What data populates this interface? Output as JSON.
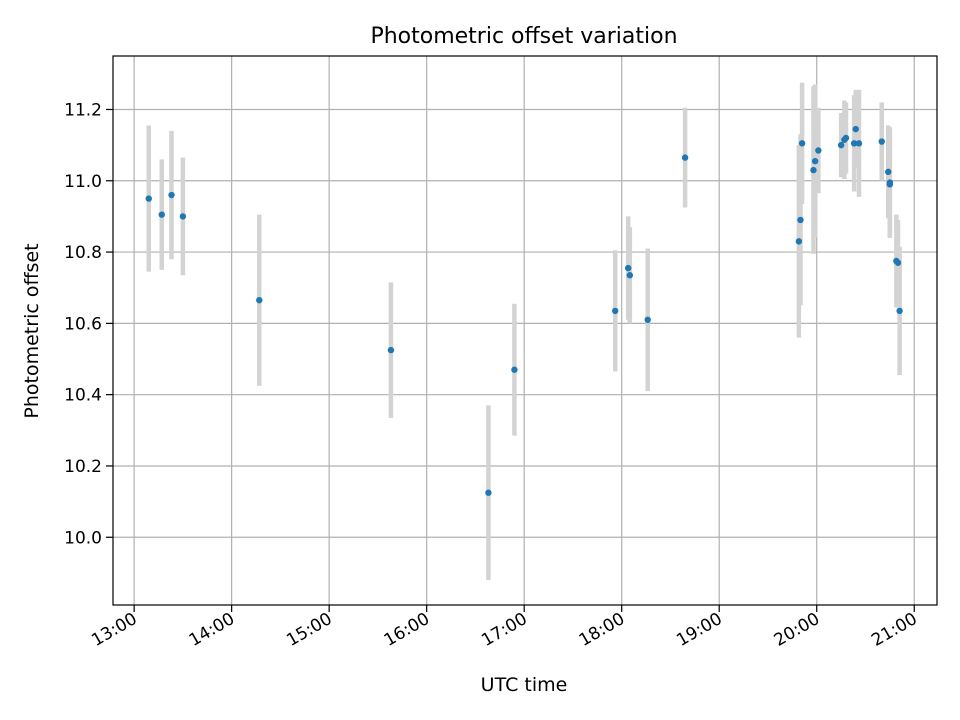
{
  "chart_data": {
    "type": "scatter",
    "title": "Photometric offset variation",
    "xlabel": "UTC time",
    "ylabel": "Photometric offset",
    "xlim": [
      "12:47",
      "21:14"
    ],
    "ylim": [
      9.81,
      11.35
    ],
    "x_ticks": [
      "13:00",
      "14:00",
      "15:00",
      "16:00",
      "17:00",
      "18:00",
      "19:00",
      "20:00",
      "21:00"
    ],
    "y_ticks": [
      10.0,
      10.2,
      10.4,
      10.6,
      10.8,
      11.0,
      11.2
    ],
    "y_tick_labels": [
      "10.0",
      "10.2",
      "10.4",
      "10.6",
      "10.8",
      "11.0",
      "11.2"
    ],
    "grid": true,
    "marker_color": "#1f77b4",
    "errorbar_color": "#d3d3d3",
    "points": [
      {
        "x": "13:09",
        "y": 10.95,
        "err": 0.205
      },
      {
        "x": "13:17",
        "y": 10.905,
        "err": 0.155
      },
      {
        "x": "13:23",
        "y": 10.96,
        "err": 0.18
      },
      {
        "x": "13:30",
        "y": 10.9,
        "err": 0.165
      },
      {
        "x": "14:17",
        "y": 10.665,
        "err": 0.24
      },
      {
        "x": "15:38",
        "y": 10.525,
        "err": 0.19
      },
      {
        "x": "16:38",
        "y": 10.125,
        "err": 0.245
      },
      {
        "x": "16:54",
        "y": 10.47,
        "err": 0.185
      },
      {
        "x": "17:56",
        "y": 10.635,
        "err": 0.17
      },
      {
        "x": "18:04",
        "y": 10.755,
        "err": 0.145
      },
      {
        "x": "18:05",
        "y": 10.735,
        "err": 0.135
      },
      {
        "x": "18:16",
        "y": 10.61,
        "err": 0.2
      },
      {
        "x": "18:39",
        "y": 11.065,
        "err": 0.14
      },
      {
        "x": "19:49",
        "y": 10.83,
        "err": 0.27
      },
      {
        "x": "19:50",
        "y": 10.89,
        "err": 0.24
      },
      {
        "x": "19:51",
        "y": 11.105,
        "err": 0.17
      },
      {
        "x": "19:58",
        "y": 11.03,
        "err": 0.235
      },
      {
        "x": "19:59",
        "y": 11.055,
        "err": 0.215
      },
      {
        "x": "20:01",
        "y": 11.085,
        "err": 0.12
      },
      {
        "x": "20:15",
        "y": 11.1,
        "err": 0.09
      },
      {
        "x": "20:17",
        "y": 11.115,
        "err": 0.11
      },
      {
        "x": "20:18",
        "y": 11.12,
        "err": 0.1
      },
      {
        "x": "20:23",
        "y": 11.105,
        "err": 0.135
      },
      {
        "x": "20:24",
        "y": 11.145,
        "err": 0.11
      },
      {
        "x": "20:26",
        "y": 11.105,
        "err": 0.15
      },
      {
        "x": "20:40",
        "y": 11.11,
        "err": 0.11
      },
      {
        "x": "20:44",
        "y": 11.025,
        "err": 0.13
      },
      {
        "x": "20:45",
        "y": 10.995,
        "err": 0.155
      },
      {
        "x": "20:45",
        "y": 10.99,
        "err": 0.15
      },
      {
        "x": "20:49",
        "y": 10.775,
        "err": 0.13
      },
      {
        "x": "20:50",
        "y": 10.77,
        "err": 0.12
      },
      {
        "x": "20:51",
        "y": 10.635,
        "err": 0.18
      }
    ]
  }
}
